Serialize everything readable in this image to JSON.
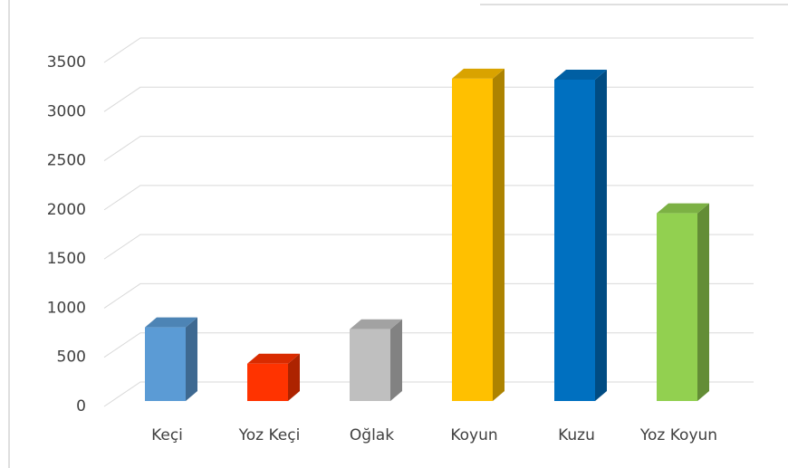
{
  "chart_data": {
    "type": "bar3d",
    "categories": [
      "Keçi",
      "Yoz Keçi",
      "Oğlak",
      "Koyun",
      "Kuzu",
      "Yoz Koyun"
    ],
    "values": [
      750,
      380,
      730,
      3280,
      3270,
      1910
    ],
    "colors": [
      "#5b9bd5",
      "#ff3300",
      "#bfbfbf",
      "#ffc000",
      "#0070c0",
      "#92d050"
    ],
    "ylim": [
      0,
      3500
    ],
    "yticks": [
      0,
      500,
      1000,
      1500,
      2000,
      2500,
      3000,
      3500
    ],
    "grid": true
  }
}
